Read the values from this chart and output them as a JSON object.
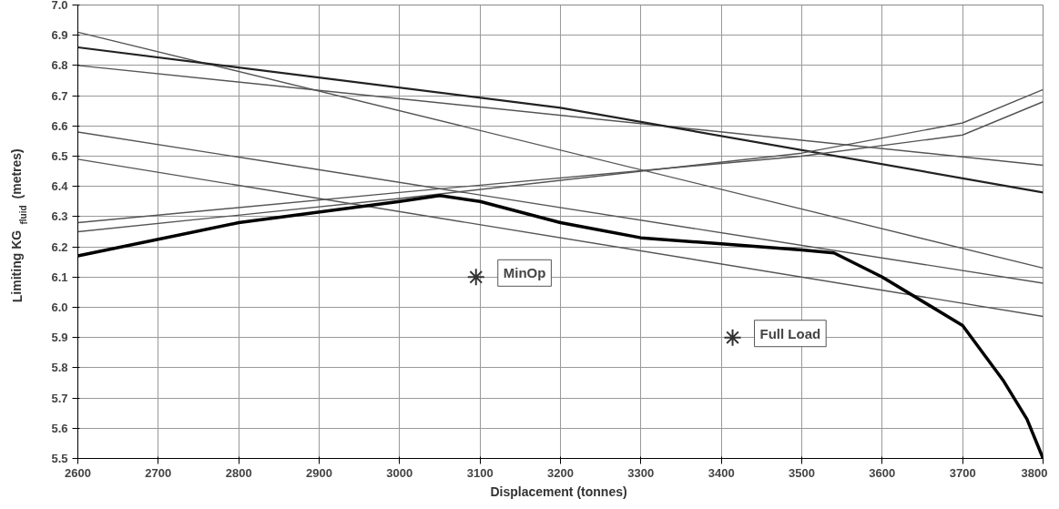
{
  "chart_data": {
    "type": "line",
    "xlabel": "Displacement  (tonnes)",
    "ylabel": "Limiting KG$_{fluid}$  (metres)",
    "xlim": [
      2600,
      3800
    ],
    "ylim": [
      5.5,
      7.0
    ],
    "xticks": [
      2600,
      2700,
      2800,
      2900,
      3000,
      3100,
      3200,
      3300,
      3400,
      3500,
      3600,
      3700,
      3800
    ],
    "yticks": [
      {
        "value": 5.5,
        "label": "5.5"
      },
      {
        "value": 5.6,
        "label": "5.6"
      },
      {
        "value": 5.7,
        "label": "5.7"
      },
      {
        "value": 5.8,
        "label": "5.8"
      },
      {
        "value": 5.9,
        "label": "5.9"
      },
      {
        "value": 6.0,
        "label": "6.0"
      },
      {
        "value": 6.1,
        "label": "6.1"
      },
      {
        "value": 6.2,
        "label": "6.2"
      },
      {
        "value": 6.3,
        "label": "6.3"
      },
      {
        "value": 6.4,
        "label": "6.4"
      },
      {
        "value": 6.5,
        "label": "6.5"
      },
      {
        "value": 6.6,
        "label": "6.6"
      },
      {
        "value": 6.7,
        "label": "6.7"
      },
      {
        "value": 6.8,
        "label": "6.8"
      },
      {
        "value": 6.9,
        "label": "6.9"
      },
      {
        "value": 7.0,
        "label": "7.0"
      }
    ],
    "grid": true,
    "marker": "none",
    "line_style": "solid",
    "series": [
      {
        "color": "#555555",
        "x": [
          2600,
          3800
        ],
        "values": [
          6.91,
          6.13
        ]
      },
      {
        "color": "#555555",
        "x": [
          2600,
          3800
        ],
        "values": [
          6.8,
          6.47
        ]
      },
      {
        "color": "#222222",
        "x": [
          2600,
          3200,
          3800
        ],
        "values": [
          6.86,
          6.66,
          6.38
        ]
      },
      {
        "color": "#555555",
        "x": [
          2600,
          3800
        ],
        "values": [
          6.58,
          6.08
        ]
      },
      {
        "color": "#555555",
        "x": [
          2600,
          3800
        ],
        "values": [
          6.49,
          5.97
        ]
      },
      {
        "color": "#555555",
        "x": [
          2600,
          3000,
          3500,
          3700,
          3800
        ],
        "values": [
          6.25,
          6.36,
          6.51,
          6.61,
          6.72
        ]
      },
      {
        "color": "#555555",
        "x": [
          2600,
          3000,
          3500,
          3700,
          3800
        ],
        "values": [
          6.28,
          6.38,
          6.5,
          6.57,
          6.68
        ]
      },
      {
        "color": "#000000",
        "x": [
          2600,
          2800,
          3000,
          3050,
          3100,
          3200,
          3300,
          3400,
          3500,
          3540,
          3600,
          3700,
          3750,
          3780,
          3800
        ],
        "values": [
          6.17,
          6.28,
          6.35,
          6.37,
          6.35,
          6.28,
          6.23,
          6.21,
          6.19,
          6.18,
          6.1,
          5.94,
          5.76,
          5.63,
          5.5
        ]
      },
      {
        "type": "scatter",
        "marker": "cross",
        "color": "#333333",
        "x": [
          3095,
          3414
        ],
        "values": [
          6.1,
          5.9
        ]
      }
    ],
    "annotations": [
      {
        "text": "MinOp",
        "x": 3095,
        "y": 6.1
      },
      {
        "text": "Full Load",
        "x": 3414,
        "y": 5.9
      }
    ]
  }
}
